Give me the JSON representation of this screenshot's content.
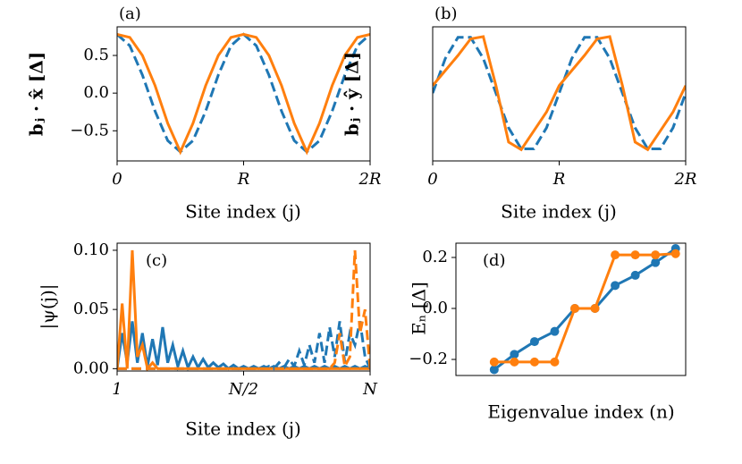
{
  "chart_data": [
    {
      "type": "line",
      "annotation": "(a)",
      "xlabel": "Site index (j)",
      "ylabel": "bⱼ · x̂ [Δ]",
      "x": [
        0,
        0.1,
        0.2,
        0.3,
        0.4,
        0.5,
        0.6,
        0.7,
        0.8,
        0.9,
        1,
        1.1,
        1.2,
        1.3,
        1.4,
        1.5,
        1.6,
        1.7,
        1.8,
        1.9,
        2
      ],
      "series": [
        {
          "color": "#1f77b4",
          "dash": true,
          "values": [
            0.78,
            0.63,
            0.24,
            -0.24,
            -0.63,
            -0.78,
            -0.63,
            -0.24,
            0.24,
            0.63,
            0.78,
            0.63,
            0.24,
            -0.24,
            -0.63,
            -0.78,
            -0.63,
            -0.24,
            0.24,
            0.63,
            0.78
          ]
        },
        {
          "color": "#ff7f0e",
          "dash": false,
          "values": [
            0.78,
            0.74,
            0.5,
            0.1,
            -0.4,
            -0.78,
            -0.4,
            0.1,
            0.5,
            0.74,
            0.78,
            0.74,
            0.5,
            0.1,
            -0.4,
            -0.78,
            -0.4,
            0.1,
            0.5,
            0.74,
            0.78
          ]
        }
      ],
      "xlim": [
        0,
        2
      ],
      "ylim": [
        -0.9,
        0.88
      ],
      "xticks": [
        0,
        {
          "value": 1,
          "label": "R"
        },
        {
          "value": 2,
          "label": "2R"
        }
      ],
      "yticks": [
        {
          "value": -0.5,
          "label": "−0.5"
        },
        {
          "value": 0,
          "label": "0.0"
        },
        0.5
      ]
    },
    {
      "type": "line",
      "annotation": "(b)",
      "xlabel": "Site index (j)",
      "ylabel": "bⱼ · ŷ [Δ]",
      "x": [
        0,
        0.1,
        0.2,
        0.3,
        0.4,
        0.5,
        0.6,
        0.7,
        0.8,
        0.9,
        1,
        1.1,
        1.2,
        1.3,
        1.4,
        1.5,
        1.6,
        1.7,
        1.8,
        1.9,
        2
      ],
      "series": [
        {
          "color": "#1f77b4",
          "dash": true,
          "values": [
            0,
            0.46,
            0.74,
            0.74,
            0.46,
            0,
            -0.46,
            -0.74,
            -0.74,
            -0.46,
            0,
            0.46,
            0.74,
            0.74,
            0.46,
            0,
            -0.46,
            -0.74,
            -0.74,
            -0.46,
            0
          ]
        },
        {
          "color": "#ff7f0e",
          "dash": false,
          "values": [
            0.1,
            0.3,
            0.5,
            0.72,
            0.75,
            0.1,
            -0.65,
            -0.75,
            -0.5,
            -0.25,
            0.1,
            0.3,
            0.5,
            0.72,
            0.75,
            0.1,
            -0.65,
            -0.75,
            -0.5,
            -0.25,
            0.1
          ]
        }
      ],
      "xlim": [
        0,
        2
      ],
      "ylim": [
        -0.9,
        0.88
      ],
      "xticks": [
        0,
        {
          "value": 1,
          "label": "R"
        },
        {
          "value": 2,
          "label": "2R"
        }
      ]
    },
    {
      "type": "line",
      "annotation": "(c)",
      "xlabel": "Site index (j)",
      "ylabel": "|ψ(j)|",
      "x": [
        0,
        0.02,
        0.04,
        0.06,
        0.08,
        0.1,
        0.12,
        0.14,
        0.16,
        0.18,
        0.2,
        0.22,
        0.24,
        0.26,
        0.28,
        0.3,
        0.32,
        0.34,
        0.36,
        0.38,
        0.4,
        0.42,
        0.44,
        0.46,
        0.48,
        0.5,
        0.52,
        0.54,
        0.56,
        0.58,
        0.6,
        0.62,
        0.64,
        0.66,
        0.68,
        0.7,
        0.72,
        0.74,
        0.76,
        0.78,
        0.8,
        0.82,
        0.84,
        0.86,
        0.88,
        0.9,
        0.92,
        0.94,
        0.96,
        0.98,
        1
      ],
      "series": [
        {
          "color": "#1f77b4",
          "dash": false,
          "values": [
            0,
            0.03,
            0.005,
            0.04,
            0.005,
            0.03,
            0.002,
            0.025,
            0.003,
            0.035,
            0.005,
            0.02,
            0.002,
            0.015,
            0.001,
            0.01,
            0.001,
            0.008,
            0.001,
            0.005,
            0.001,
            0.004,
            0,
            0.003,
            0,
            0.002,
            0,
            0.002,
            0,
            0.002,
            0,
            0.002,
            0,
            0.002,
            0,
            0.002,
            0,
            0.002,
            0,
            0.002,
            0,
            0.002,
            0,
            0.002,
            0,
            0.002,
            0,
            0.002,
            0,
            0.002,
            0
          ]
        },
        {
          "color": "#ff7f0e",
          "dash": false,
          "values": [
            0,
            0.055,
            0,
            0.1,
            0.01,
            0.02,
            0,
            0.005,
            0,
            0,
            0,
            0,
            0,
            0,
            0,
            0,
            0,
            0,
            0,
            0,
            0,
            0,
            0,
            0,
            0,
            0,
            0,
            0,
            0,
            0,
            0,
            0,
            0,
            0,
            0,
            0,
            0,
            0,
            0,
            0,
            0,
            0,
            0,
            0,
            0,
            0,
            0,
            0,
            0,
            0,
            0
          ]
        },
        {
          "color": "#1f77b4",
          "dash": true,
          "values": [
            0,
            0,
            0,
            0,
            0,
            0,
            0,
            0,
            0,
            0,
            0,
            0,
            0,
            0,
            0,
            0,
            0,
            0,
            0,
            0,
            0,
            0,
            0,
            0,
            0,
            0,
            0,
            0,
            0,
            0,
            0.002,
            0,
            0.005,
            0.001,
            0.008,
            0.002,
            0.015,
            0.003,
            0.02,
            0.005,
            0.03,
            0.005,
            0.035,
            0.01,
            0.04,
            0.005,
            0.03,
            0.02,
            0.04,
            0.01,
            0
          ]
        },
        {
          "color": "#ff7f0e",
          "dash": true,
          "values": [
            0,
            0,
            0,
            0,
            0,
            0,
            0,
            0,
            0,
            0,
            0,
            0,
            0,
            0,
            0,
            0,
            0,
            0,
            0,
            0,
            0,
            0,
            0,
            0,
            0,
            0,
            0,
            0,
            0,
            0,
            0,
            0,
            0,
            0,
            0,
            0,
            0,
            0,
            0,
            0,
            0,
            0,
            0,
            0.005,
            0.03,
            0.002,
            0.01,
            0.1,
            0.03,
            0.05,
            0
          ]
        }
      ],
      "xlim": [
        0,
        1
      ],
      "ylim": [
        -0.002,
        0.106
      ],
      "xticks": [
        {
          "value": 0,
          "label": "1"
        },
        {
          "value": 0.5,
          "label": "N/2"
        },
        {
          "value": 1,
          "label": "N"
        }
      ],
      "yticks": [
        {
          "value": 0,
          "label": "0.00"
        },
        0.05,
        {
          "value": 0.1,
          "label": "0.10"
        }
      ]
    },
    {
      "type": "line",
      "annotation": "(d)",
      "xlabel": "Eigenvalue index (n)",
      "ylabel": "Eₙ [Δ]",
      "marker": true,
      "x": [
        1,
        2,
        3,
        4,
        5,
        6,
        7,
        8,
        9,
        10
      ],
      "series": [
        {
          "color": "#1f77b4",
          "dash": false,
          "values": [
            -0.24,
            -0.18,
            -0.13,
            -0.09,
            0,
            0,
            0.09,
            0.13,
            0.18,
            0.235
          ]
        },
        {
          "color": "#ff7f0e",
          "dash": false,
          "values": [
            -0.21,
            -0.21,
            -0.21,
            -0.21,
            0,
            0,
            0.21,
            0.21,
            0.21,
            0.215
          ]
        }
      ],
      "xlim": [
        -0.9,
        10.5
      ],
      "ylim": [
        -0.263,
        0.256
      ],
      "yticks": [
        {
          "value": -0.2,
          "label": "−0.2"
        },
        {
          "value": 0,
          "label": "0.0"
        },
        0.2
      ]
    }
  ]
}
